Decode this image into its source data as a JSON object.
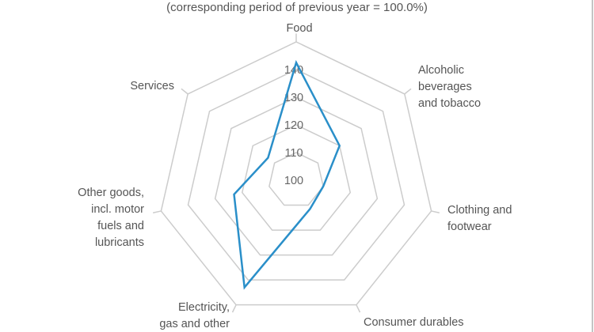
{
  "chart_data": {
    "type": "radar",
    "subtitle": "(corresponding period of previous year = 100.0%)",
    "categories": [
      [
        "Food"
      ],
      [
        "Alcoholic",
        "beverages",
        "and tobacco"
      ],
      [
        "Clothing and",
        "footwear"
      ],
      [
        "Consumer durables"
      ],
      [
        "Electricity,",
        "gas and other"
      ],
      [
        "Other goods,",
        "incl. motor",
        "fuels and",
        "lubricants"
      ],
      [
        "Services"
      ]
    ],
    "values": [
      142.5,
      120,
      110,
      111.5,
      143,
      123,
      113
    ],
    "rlim": [
      100,
      150
    ],
    "ticks": [
      "100",
      "110",
      "120",
      "130",
      "140"
    ],
    "grid": true,
    "series_color": "#2a8fc9",
    "grid_color": "#cccccc"
  }
}
